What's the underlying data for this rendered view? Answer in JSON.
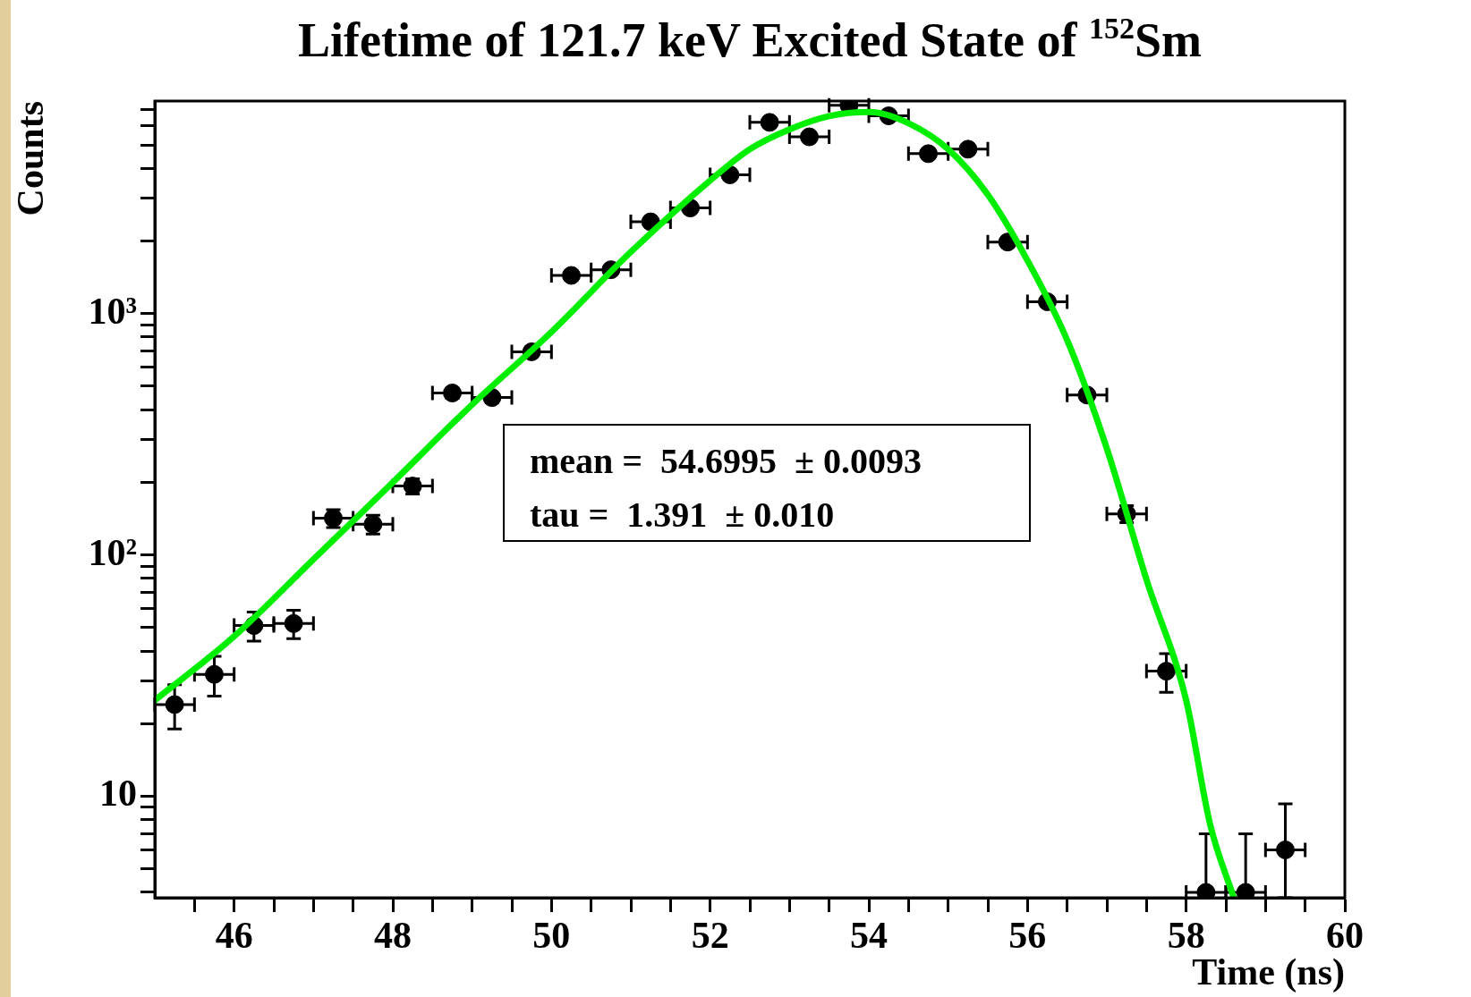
{
  "chart_data": {
    "type": "scatter",
    "title": "Lifetime of 121.7 keV Excited State of $^{152}$Sm",
    "xlabel": "Time (ns)",
    "ylabel": "Counts",
    "log": "y",
    "xlim": [
      45,
      60
    ],
    "ylim": [
      3.8,
      7600
    ],
    "xticks": [
      {
        "value": 45.5,
        "label": null
      },
      46,
      {
        "value": 46.5,
        "label": null
      },
      {
        "value": 47,
        "label": null
      },
      {
        "value": 47.5,
        "label": null
      },
      48,
      {
        "value": 48.5,
        "label": null
      },
      {
        "value": 49,
        "label": null
      },
      {
        "value": 49.5,
        "label": null
      },
      50,
      {
        "value": 50.5,
        "label": null
      },
      {
        "value": 51,
        "label": null
      },
      {
        "value": 51.5,
        "label": null
      },
      52,
      {
        "value": 52.5,
        "label": null
      },
      {
        "value": 53,
        "label": null
      },
      {
        "value": 53.5,
        "label": null
      },
      54,
      {
        "value": 54.5,
        "label": null
      },
      {
        "value": 55,
        "label": null
      },
      {
        "value": 55.5,
        "label": null
      },
      56,
      {
        "value": 56.5,
        "label": null
      },
      {
        "value": 57,
        "label": null
      },
      {
        "value": 57.5,
        "label": null
      },
      58,
      {
        "value": 58.5,
        "label": null
      },
      {
        "value": 59,
        "label": null
      },
      {
        "value": 59.5,
        "label": null
      },
      60
    ],
    "yticks": [
      {
        "value": 4,
        "label": null
      },
      {
        "value": 5,
        "label": null
      },
      {
        "value": 6,
        "label": null
      },
      {
        "value": 7,
        "label": null
      },
      {
        "value": 8,
        "label": null
      },
      {
        "value": 9,
        "label": null
      },
      10,
      {
        "value": 20,
        "label": null
      },
      {
        "value": 30,
        "label": null
      },
      {
        "value": 40,
        "label": null
      },
      {
        "value": 50,
        "label": null
      },
      {
        "value": 60,
        "label": null
      },
      {
        "value": 70,
        "label": null
      },
      {
        "value": 80,
        "label": null
      },
      {
        "value": 90,
        "label": null
      },
      {
        "value": 100,
        "label": "10²"
      },
      {
        "value": 200,
        "label": null
      },
      {
        "value": 300,
        "label": null
      },
      {
        "value": 400,
        "label": null
      },
      {
        "value": 500,
        "label": null
      },
      {
        "value": 600,
        "label": null
      },
      {
        "value": 700,
        "label": null
      },
      {
        "value": 800,
        "label": null
      },
      {
        "value": 900,
        "label": null
      },
      {
        "value": 1000,
        "label": "10³"
      },
      {
        "value": 2000,
        "label": null
      },
      {
        "value": 3000,
        "label": null
      },
      {
        "value": 4000,
        "label": null
      },
      {
        "value": 5000,
        "label": null
      },
      {
        "value": 6000,
        "label": null
      },
      {
        "value": 7000,
        "label": null
      }
    ],
    "annotations": [
      "mean =  54.6995  ± 0.0093",
      "tau =  1.391  ± 0.010"
    ],
    "series": [
      {
        "marker": "circle",
        "color": "#000000",
        "x": [
          45.25,
          45.75,
          46.25,
          46.75,
          47.25,
          47.75,
          48.25,
          48.75,
          49.25,
          49.75,
          50.25,
          50.75,
          51.25,
          51.75,
          52.25,
          52.75,
          53.25,
          53.75,
          54.25,
          54.75,
          55.25,
          55.75,
          56.25,
          56.75,
          57.25,
          57.75,
          58.25,
          58.75,
          59.25
        ],
        "values": [
          24,
          32,
          51,
          52,
          142,
          134,
          193,
          469,
          449,
          695,
          1440,
          1520,
          2400,
          2740,
          3760,
          6200,
          5400,
          7300,
          6600,
          4600,
          4800,
          1980,
          1120,
          460,
          148,
          33,
          4,
          4,
          6
        ],
        "errors": [
          5,
          6,
          7,
          7,
          12,
          12,
          14,
          22,
          21,
          26,
          38,
          39,
          49,
          52,
          61,
          79,
          73,
          85,
          81,
          68,
          69,
          44,
          33,
          21,
          12,
          6,
          [
            4,
            7
          ],
          [
            4,
            7
          ],
          [
            3.8,
            9.3
          ]
        ],
        "xerrors": [
          0.25,
          0.25,
          0.25,
          0.25,
          0.25,
          0.25,
          0.25,
          0.25,
          0.25,
          0.25,
          0.25,
          0.25,
          0.25,
          0.25,
          0.25,
          0.25,
          0.25,
          0.25,
          0.25,
          0.25,
          0.25,
          0.25,
          0.25,
          0.25,
          0.25,
          0.25,
          0.25,
          0.25,
          0.25
        ]
      },
      {
        "type": "line",
        "color": "#00ee00",
        "x": [
          45,
          46,
          47,
          48,
          49,
          50,
          51,
          52,
          52.5,
          53,
          53.5,
          54,
          54.5,
          55,
          55.5,
          56,
          56.5,
          57,
          57.5,
          58,
          58.3,
          58.6
        ],
        "values": [
          25,
          46,
          96,
          200,
          420,
          840,
          1800,
          3560,
          4800,
          5800,
          6580,
          6840,
          6150,
          4800,
          3110,
          1660,
          776,
          276,
          79,
          25,
          7.7,
          3.8
        ]
      }
    ]
  }
}
